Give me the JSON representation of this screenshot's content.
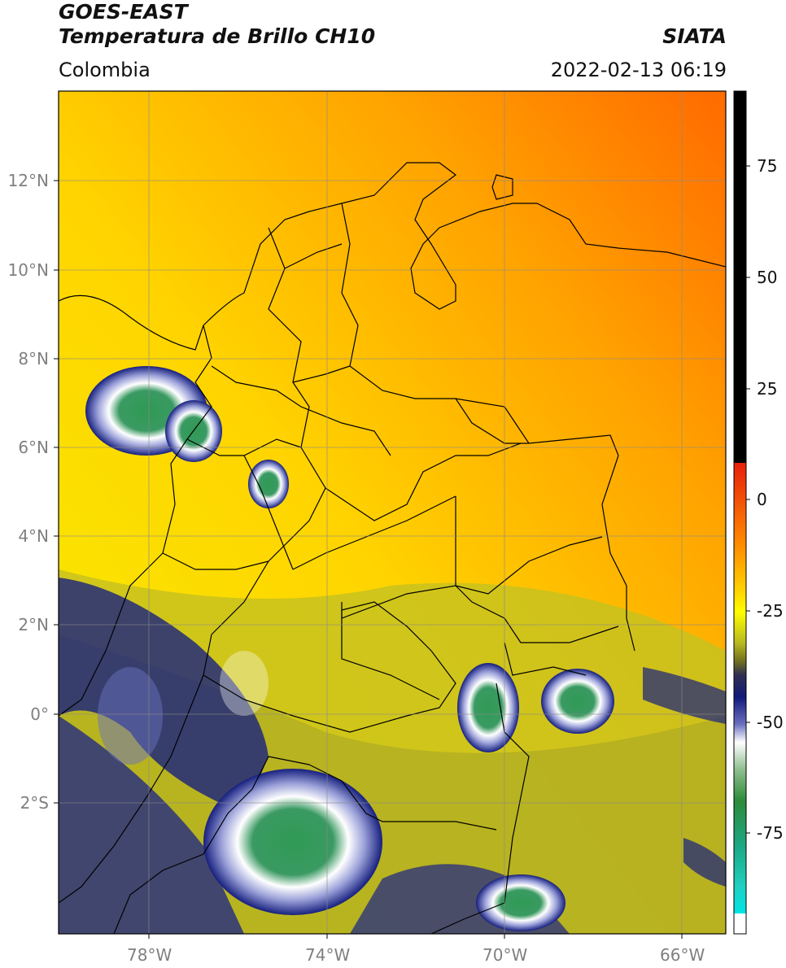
{
  "header": {
    "title_line1": "GOES-EAST",
    "title_line2": "Temperatura de Brillo CH10",
    "region": "Colombia",
    "source": "SIATA",
    "datetime": "2022-02-13 06:19"
  },
  "map": {
    "lon_ticks": [
      "78°W",
      "74°W",
      "70°W",
      "66°W"
    ],
    "lat_ticks": [
      "12°N",
      "10°N",
      "8°N",
      "6°N",
      "4°N",
      "2°N",
      "0°",
      "2°S"
    ]
  },
  "colorbar": {
    "ticks": [
      "75",
      "50",
      "25",
      "0",
      "-25",
      "-50",
      "-75"
    ],
    "colors": {
      "black": "#000000",
      "red": "#e8200a",
      "orange": "#ff7a00",
      "yellow": "#ffee00",
      "olive": "#8c8c1e",
      "navy": "#101a7a",
      "white": "#ffffff",
      "green": "#2e8b3a",
      "teal": "#1fc7a8",
      "cyan": "#00e5e5"
    }
  }
}
